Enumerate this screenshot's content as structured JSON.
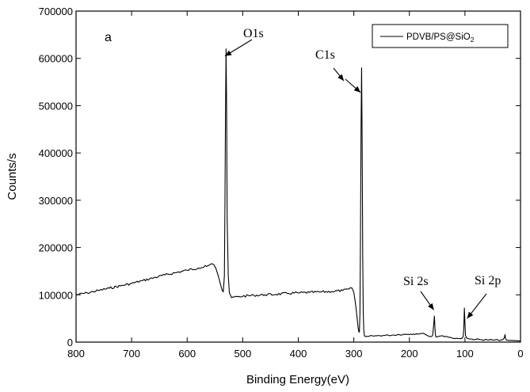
{
  "chart_data": {
    "type": "line",
    "panel_label": "a",
    "xlabel": "Binding Energy(eV)",
    "ylabel": "Counts/s",
    "xlim": [
      800,
      0
    ],
    "ylim": [
      0,
      700000
    ],
    "x_reversed": true,
    "x_ticks": [
      800,
      700,
      600,
      500,
      400,
      300,
      200,
      100,
      0
    ],
    "y_ticks": [
      0,
      100000,
      200000,
      300000,
      400000,
      500000,
      600000,
      700000
    ],
    "grid": false,
    "legend_position": "top-right",
    "series": [
      {
        "name": "PDVB/PS@SiO",
        "name_subscript": "2",
        "color": "#000000",
        "x": [
          800,
          780,
          760,
          740,
          720,
          700,
          680,
          660,
          640,
          620,
          600,
          580,
          565,
          560,
          556,
          552,
          548,
          544,
          540,
          537,
          535,
          533,
          532,
          531,
          530,
          529,
          528,
          526,
          524,
          520,
          510,
          500,
          480,
          460,
          440,
          420,
          400,
          380,
          360,
          340,
          320,
          310,
          306,
          303,
          300,
          298,
          296,
          294,
          292,
          291,
          290,
          289,
          288,
          287,
          286,
          285,
          284,
          283,
          282,
          281,
          280,
          278,
          276,
          272,
          266,
          258,
          248,
          238,
          228,
          218,
          208,
          198,
          188,
          178,
          172,
          168,
          164,
          160,
          158,
          156,
          155,
          154,
          153,
          152,
          150,
          148,
          144,
          140,
          132,
          124,
          116,
          110,
          106,
          103,
          102,
          101,
          100,
          99,
          97,
          94,
          90,
          80,
          70,
          60,
          50,
          40,
          32,
          29,
          28,
          27,
          26,
          24,
          20,
          16,
          12,
          8,
          4,
          0
        ],
        "y": [
          100000,
          104000,
          109000,
          114000,
          119000,
          124000,
          130000,
          136000,
          142000,
          147000,
          152000,
          157000,
          160000,
          163000,
          166000,
          164000,
          155000,
          140000,
          122000,
          110000,
          106000,
          140000,
          290000,
          480000,
          620000,
          500000,
          260000,
          140000,
          104000,
          94000,
          96000,
          97000,
          99000,
          100000,
          101000,
          103000,
          104000,
          105000,
          106000,
          107000,
          109000,
          112000,
          115000,
          114000,
          105000,
          90000,
          72000,
          50000,
          28000,
          22000,
          21000,
          60000,
          230000,
          450000,
          580000,
          420000,
          180000,
          60000,
          25000,
          14000,
          12000,
          12000,
          12000,
          12500,
          13000,
          13500,
          14000,
          14500,
          15000,
          16000,
          16500,
          17000,
          17500,
          18000,
          17000,
          14000,
          12000,
          11500,
          15000,
          40000,
          55000,
          30000,
          14000,
          11000,
          11000,
          12000,
          13000,
          13500,
          11500,
          9000,
          8000,
          7500,
          7500,
          12000,
          30000,
          72000,
          40000,
          14000,
          9000,
          7000,
          6500,
          5800,
          5200,
          4800,
          4400,
          4200,
          5000,
          9000,
          16000,
          9000,
          5000,
          3800,
          3500,
          3400,
          3200,
          3000,
          2800,
          2000
        ]
      }
    ],
    "annotations": [
      {
        "text": "O1s",
        "tip_x": 532,
        "tip_y": 605000
      },
      {
        "text": "C1s",
        "tip_x": 288,
        "tip_y": 528000
      },
      {
        "text": "Si 2s",
        "tip_x": 156,
        "tip_y": 68000
      },
      {
        "text": "Si 2p",
        "tip_x": 96,
        "tip_y": 50000
      }
    ]
  }
}
